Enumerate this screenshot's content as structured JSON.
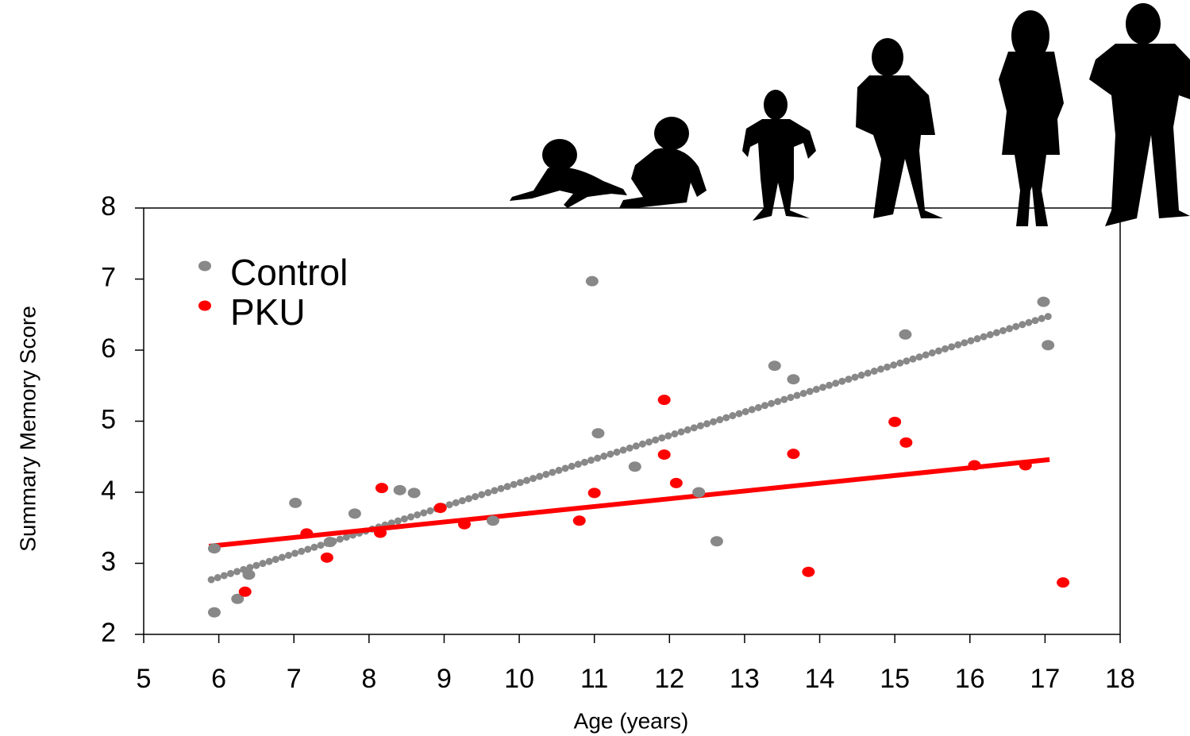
{
  "chart_data": {
    "type": "scatter",
    "x_label": "Age (years)",
    "y_label": "Summary Memory Score",
    "xlim": [
      5,
      18
    ],
    "xticks": [
      5,
      6,
      7,
      8,
      9,
      10,
      11,
      12,
      13,
      14,
      15,
      16,
      17,
      18
    ],
    "ylim": [
      2,
      8
    ],
    "yticks": [
      2,
      3,
      4,
      5,
      6,
      7,
      8
    ],
    "series": [
      {
        "name": "Control",
        "color": "#888888",
        "x": [
          5.94,
          5.94,
          6.25,
          6.4,
          7.02,
          7.48,
          7.81,
          8.41,
          8.6,
          9.65,
          10.97,
          11.05,
          11.54,
          12.39,
          12.63,
          13.4,
          13.65,
          15.14,
          16.98,
          17.04
        ],
        "values": [
          2.31,
          3.21,
          2.5,
          2.84,
          3.85,
          3.3,
          3.7,
          4.03,
          3.99,
          3.6,
          6.97,
          4.83,
          4.36,
          4.0,
          3.31,
          5.78,
          5.59,
          6.22,
          6.68,
          6.07
        ],
        "trend": {
          "x": [
            5.9,
            17.09
          ],
          "values": [
            2.77,
            6.49
          ],
          "style": "dotted"
        }
      },
      {
        "name": "PKU",
        "color": "#ff0000",
        "x": [
          6.35,
          7.17,
          7.44,
          8.15,
          8.17,
          8.95,
          9.27,
          10.8,
          11.0,
          11.93,
          11.93,
          12.09,
          13.65,
          13.85,
          15.0,
          15.15,
          16.06,
          16.74,
          17.24
        ],
        "values": [
          2.6,
          3.42,
          3.08,
          3.43,
          4.06,
          3.78,
          3.55,
          3.6,
          3.99,
          5.3,
          4.53,
          4.13,
          4.54,
          2.88,
          4.99,
          4.7,
          4.38,
          4.38,
          2.73
        ],
        "trend": {
          "x": [
            5.87,
            17.06
          ],
          "values": [
            3.24,
            4.46
          ],
          "style": "solid"
        }
      }
    ]
  }
}
